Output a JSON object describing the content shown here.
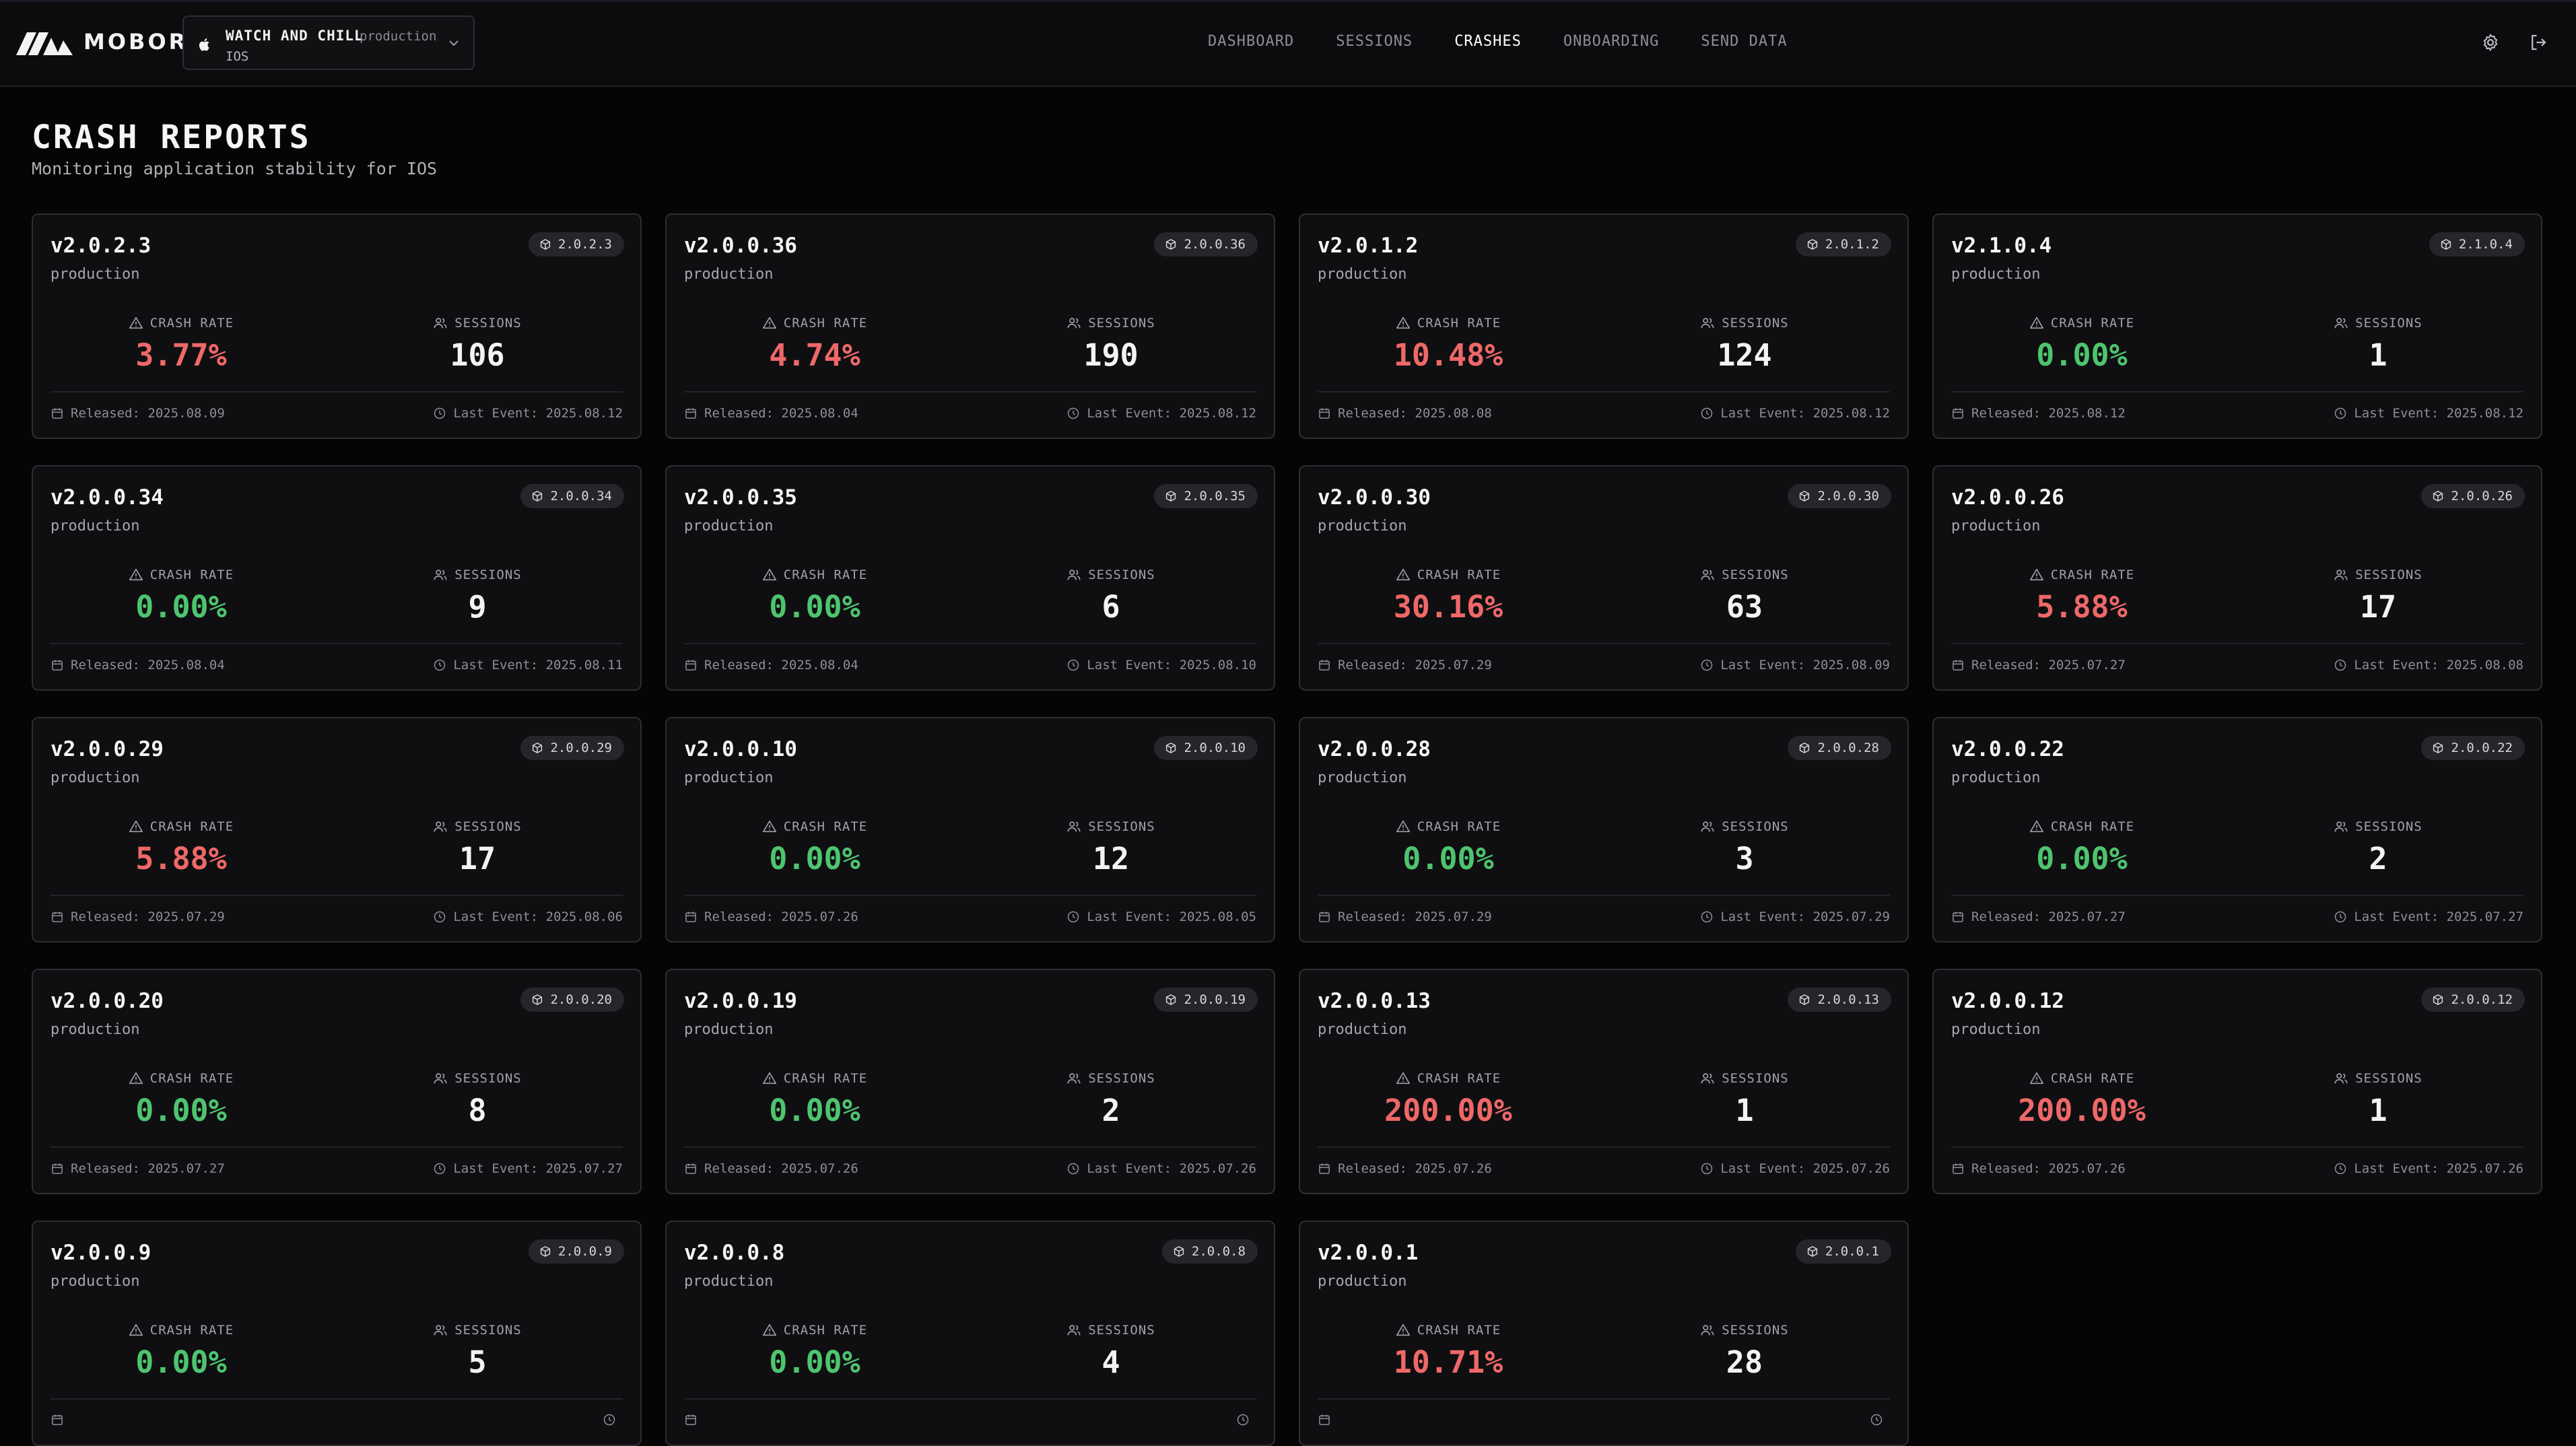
{
  "brand": {
    "name": "MOBORE"
  },
  "app_selector": {
    "name": "WATCH AND CHILL",
    "environment": "production",
    "platform": "IOS"
  },
  "nav": [
    {
      "label": "DASHBOARD",
      "active": false
    },
    {
      "label": "SESSIONS",
      "active": false
    },
    {
      "label": "CRASHES",
      "active": true
    },
    {
      "label": "ONBOARDING",
      "active": false
    },
    {
      "label": "SEND DATA",
      "active": false
    }
  ],
  "header_icons": [
    "settings-icon",
    "logout-icon"
  ],
  "page": {
    "title": "CRASH REPORTS",
    "subtitle": "Monitoring application stability for IOS"
  },
  "labels": {
    "crash_rate": "CRASH RATE",
    "sessions": "SESSIONS",
    "released_prefix": "Released: ",
    "last_event_prefix": "Last Event: "
  },
  "colors": {
    "bad": "#ef6868",
    "good": "#4ec46f"
  },
  "cards": [
    {
      "version": "v2.0.2.3",
      "badge": "2.0.2.3",
      "env": "production",
      "crash_rate": "3.77%",
      "status": "bad",
      "sessions": "106",
      "released": "Released: 2025.08.09",
      "last_event": "Last Event: 2025.08.12"
    },
    {
      "version": "v2.0.0.36",
      "badge": "2.0.0.36",
      "env": "production",
      "crash_rate": "4.74%",
      "status": "bad",
      "sessions": "190",
      "released": "Released: 2025.08.04",
      "last_event": "Last Event: 2025.08.12"
    },
    {
      "version": "v2.0.1.2",
      "badge": "2.0.1.2",
      "env": "production",
      "crash_rate": "10.48%",
      "status": "bad",
      "sessions": "124",
      "released": "Released: 2025.08.08",
      "last_event": "Last Event: 2025.08.12"
    },
    {
      "version": "v2.1.0.4",
      "badge": "2.1.0.4",
      "env": "production",
      "crash_rate": "0.00%",
      "status": "good",
      "sessions": "1",
      "released": "Released: 2025.08.12",
      "last_event": "Last Event: 2025.08.12"
    },
    {
      "version": "v2.0.0.34",
      "badge": "2.0.0.34",
      "env": "production",
      "crash_rate": "0.00%",
      "status": "good",
      "sessions": "9",
      "released": "Released: 2025.08.04",
      "last_event": "Last Event: 2025.08.11"
    },
    {
      "version": "v2.0.0.35",
      "badge": "2.0.0.35",
      "env": "production",
      "crash_rate": "0.00%",
      "status": "good",
      "sessions": "6",
      "released": "Released: 2025.08.04",
      "last_event": "Last Event: 2025.08.10"
    },
    {
      "version": "v2.0.0.30",
      "badge": "2.0.0.30",
      "env": "production",
      "crash_rate": "30.16%",
      "status": "bad",
      "sessions": "63",
      "released": "Released: 2025.07.29",
      "last_event": "Last Event: 2025.08.09"
    },
    {
      "version": "v2.0.0.26",
      "badge": "2.0.0.26",
      "env": "production",
      "crash_rate": "5.88%",
      "status": "bad",
      "sessions": "17",
      "released": "Released: 2025.07.27",
      "last_event": "Last Event: 2025.08.08"
    },
    {
      "version": "v2.0.0.29",
      "badge": "2.0.0.29",
      "env": "production",
      "crash_rate": "5.88%",
      "status": "bad",
      "sessions": "17",
      "released": "Released: 2025.07.29",
      "last_event": "Last Event: 2025.08.06"
    },
    {
      "version": "v2.0.0.10",
      "badge": "2.0.0.10",
      "env": "production",
      "crash_rate": "0.00%",
      "status": "good",
      "sessions": "12",
      "released": "Released: 2025.07.26",
      "last_event": "Last Event: 2025.08.05"
    },
    {
      "version": "v2.0.0.28",
      "badge": "2.0.0.28",
      "env": "production",
      "crash_rate": "0.00%",
      "status": "good",
      "sessions": "3",
      "released": "Released: 2025.07.29",
      "last_event": "Last Event: 2025.07.29"
    },
    {
      "version": "v2.0.0.22",
      "badge": "2.0.0.22",
      "env": "production",
      "crash_rate": "0.00%",
      "status": "good",
      "sessions": "2",
      "released": "Released: 2025.07.27",
      "last_event": "Last Event: 2025.07.27"
    },
    {
      "version": "v2.0.0.20",
      "badge": "2.0.0.20",
      "env": "production",
      "crash_rate": "0.00%",
      "status": "good",
      "sessions": "8",
      "released": "Released: 2025.07.27",
      "last_event": "Last Event: 2025.07.27"
    },
    {
      "version": "v2.0.0.19",
      "badge": "2.0.0.19",
      "env": "production",
      "crash_rate": "0.00%",
      "status": "good",
      "sessions": "2",
      "released": "Released: 2025.07.26",
      "last_event": "Last Event: 2025.07.26"
    },
    {
      "version": "v2.0.0.13",
      "badge": "2.0.0.13",
      "env": "production",
      "crash_rate": "200.00%",
      "status": "bad",
      "sessions": "1",
      "released": "Released: 2025.07.26",
      "last_event": "Last Event: 2025.07.26"
    },
    {
      "version": "v2.0.0.12",
      "badge": "2.0.0.12",
      "env": "production",
      "crash_rate": "200.00%",
      "status": "bad",
      "sessions": "1",
      "released": "Released: 2025.07.26",
      "last_event": "Last Event: 2025.07.26"
    },
    {
      "version": "v2.0.0.9",
      "badge": "2.0.0.9",
      "env": "production",
      "crash_rate": "0.00%",
      "status": "good",
      "sessions": "5",
      "released": "",
      "last_event": ""
    },
    {
      "version": "v2.0.0.8",
      "badge": "2.0.0.8",
      "env": "production",
      "crash_rate": "0.00%",
      "status": "good",
      "sessions": "4",
      "released": "",
      "last_event": ""
    },
    {
      "version": "v2.0.0.1",
      "badge": "2.0.0.1",
      "env": "production",
      "crash_rate": "10.71%",
      "status": "bad",
      "sessions": "28",
      "released": "",
      "last_event": ""
    }
  ]
}
